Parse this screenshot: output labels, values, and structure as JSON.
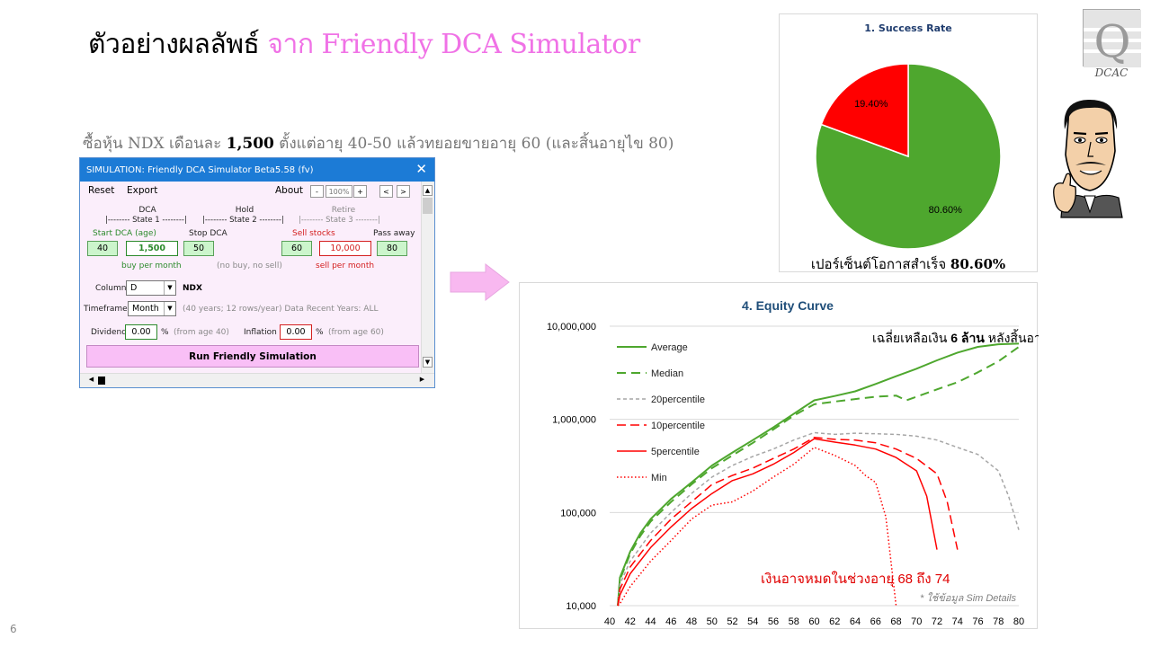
{
  "slide": {
    "title_main": "ตัวอย่างผลลัพธ์",
    "title_accent": "จาก Friendly DCA Simulator",
    "subtitle_pre": "ซื้อหุ้น NDX เดือนละ",
    "subtitle_amount": "1,500",
    "subtitle_post": "ตั้งแต่อายุ 40-50 แล้วทยอยขายอายุ 60 (และสิ้นอายุไข 80)",
    "page_number": "6",
    "logo_letter": "Q",
    "logo_text": "DCAC"
  },
  "simulator": {
    "window_title": "SIMULATION: Friendly DCA Simulator Beta5.58 (fv)",
    "menu": {
      "reset": "Reset",
      "export": "Export",
      "about": "About",
      "zoom_minus": "-",
      "zoom_value": "100%",
      "zoom_plus": "+",
      "prev": "<",
      "next": ">"
    },
    "states": [
      {
        "name": "DCA",
        "label": "|-------- State 1 --------|"
      },
      {
        "name": "Hold",
        "label": "|-------- State 2 --------|"
      },
      {
        "name": "Retire",
        "label": "|-------- State 3 --------|"
      }
    ],
    "fields": {
      "start_label": "Start DCA (age)",
      "stop_label": "Stop DCA",
      "sell_label": "Sell stocks",
      "pass_label": "Pass away",
      "start_age": "40",
      "buy_amount": "1,500",
      "stop_age": "50",
      "sell_age": "60",
      "sell_amount": "10,000",
      "pass_age": "80",
      "buy_note": "buy per month",
      "hold_note": "(no buy, no sell)",
      "sell_note": "sell per month"
    },
    "column": {
      "label": "Column",
      "value": "D",
      "ticker": "NDX"
    },
    "timeframe": {
      "label": "Timeframe",
      "value": "Month",
      "note": "(40 years; 12 rows/year) Data Recent Years: ALL"
    },
    "dividend": {
      "label": "Dividend",
      "value": "0.00",
      "unit": "%",
      "note": "(from age 40)"
    },
    "inflation": {
      "label": "Inflation",
      "value": "0.00",
      "unit": "%",
      "note": "(from age 60)"
    },
    "run_button": "Run Friendly Simulation"
  },
  "pie": {
    "title": "1. Success Rate",
    "caption_text": "เปอร์เซ็นต์โอกาสสำเร็จ",
    "caption_value": "80.60%"
  },
  "equity": {
    "title": "4. Equity Curve",
    "annotation_pre": "เฉลี่ยเหลือเงิน",
    "annotation_bold": "6 ล้าน",
    "annotation_post": "หลังสิ้นอายุไข",
    "runout_note": "เงินอาจหมดในช่วงอายุ 68 ถึง 74",
    "source_note": "* ใช้ข้อมูล Sim Details"
  },
  "chart_data": [
    {
      "type": "pie",
      "title": "1. Success Rate",
      "slices": [
        {
          "value": 80.6,
          "label": "80.60%",
          "color": "#4ea72e"
        },
        {
          "value": 19.4,
          "label": "19.40%",
          "color": "#ff0000"
        }
      ]
    },
    {
      "type": "line",
      "title": "4. Equity Curve",
      "x_scale": "linear",
      "y_scale": "log",
      "xlim": [
        40,
        80
      ],
      "ylim": [
        10000,
        10000000
      ],
      "x_ticks": [
        40,
        42,
        44,
        46,
        48,
        50,
        52,
        54,
        56,
        58,
        60,
        62,
        64,
        66,
        68,
        70,
        72,
        74,
        76,
        78,
        80
      ],
      "y_ticks": [
        10000,
        100000,
        1000000,
        10000000
      ],
      "y_tick_labels": [
        "10,000",
        "100,000",
        "1,000,000",
        "10,000,000"
      ],
      "grid": "horizontal",
      "legend_position": "top-left",
      "series": [
        {
          "name": "Average",
          "color": "#4ea72e",
          "dash": "solid",
          "width": 2,
          "points": [
            [
              40.8,
              10000
            ],
            [
              41,
              20000
            ],
            [
              42,
              38000
            ],
            [
              43,
              60000
            ],
            [
              44,
              85000
            ],
            [
              46,
              140000
            ],
            [
              48,
              210000
            ],
            [
              50,
              320000
            ],
            [
              52,
              440000
            ],
            [
              54,
              600000
            ],
            [
              56,
              820000
            ],
            [
              58,
              1150000
            ],
            [
              60,
              1600000
            ],
            [
              62,
              1780000
            ],
            [
              64,
              2000000
            ],
            [
              66,
              2400000
            ],
            [
              68,
              2900000
            ],
            [
              70,
              3500000
            ],
            [
              72,
              4300000
            ],
            [
              74,
              5200000
            ],
            [
              76,
              6000000
            ],
            [
              78,
              6400000
            ],
            [
              80,
              6500000
            ]
          ]
        },
        {
          "name": "Median",
          "color": "#4ea72e",
          "dash": "10 6",
          "width": 2,
          "points": [
            [
              40.8,
              10000
            ],
            [
              41,
              19000
            ],
            [
              42,
              36000
            ],
            [
              43,
              56000
            ],
            [
              44,
              80000
            ],
            [
              46,
              130000
            ],
            [
              48,
              200000
            ],
            [
              50,
              300000
            ],
            [
              52,
              410000
            ],
            [
              54,
              560000
            ],
            [
              56,
              780000
            ],
            [
              58,
              1100000
            ],
            [
              60,
              1450000
            ],
            [
              62,
              1550000
            ],
            [
              64,
              1650000
            ],
            [
              66,
              1750000
            ],
            [
              68,
              1800000
            ],
            [
              69,
              1600000
            ],
            [
              70,
              1750000
            ],
            [
              72,
              2100000
            ],
            [
              74,
              2500000
            ],
            [
              76,
              3200000
            ],
            [
              78,
              4200000
            ],
            [
              80,
              6000000
            ]
          ]
        },
        {
          "name": "20percentile",
          "color": "#a6a6a6",
          "dash": "4 3",
          "width": 1.5,
          "points": [
            [
              40.8,
              10000
            ],
            [
              41,
              17000
            ],
            [
              42,
              30000
            ],
            [
              44,
              60000
            ],
            [
              46,
              100000
            ],
            [
              48,
              160000
            ],
            [
              50,
              240000
            ],
            [
              52,
              320000
            ],
            [
              54,
              400000
            ],
            [
              56,
              480000
            ],
            [
              58,
              600000
            ],
            [
              60,
              720000
            ],
            [
              62,
              690000
            ],
            [
              64,
              710000
            ],
            [
              66,
              700000
            ],
            [
              68,
              690000
            ],
            [
              70,
              660000
            ],
            [
              72,
              600000
            ],
            [
              74,
              500000
            ],
            [
              76,
              420000
            ],
            [
              78,
              280000
            ],
            [
              79,
              150000
            ],
            [
              80,
              65000
            ]
          ]
        },
        {
          "name": "10percentile",
          "color": "#ff0000",
          "dash": "10 5",
          "width": 1.5,
          "points": [
            [
              40.8,
              10000
            ],
            [
              41,
              15000
            ],
            [
              42,
              26000
            ],
            [
              44,
              50000
            ],
            [
              46,
              85000
            ],
            [
              48,
              130000
            ],
            [
              50,
              200000
            ],
            [
              52,
              250000
            ],
            [
              54,
              300000
            ],
            [
              56,
              380000
            ],
            [
              58,
              480000
            ],
            [
              60,
              640000
            ],
            [
              62,
              610000
            ],
            [
              64,
              600000
            ],
            [
              66,
              560000
            ],
            [
              68,
              480000
            ],
            [
              70,
              380000
            ],
            [
              72,
              260000
            ],
            [
              73,
              130000
            ],
            [
              74,
              40000
            ]
          ]
        },
        {
          "name": "5percentile",
          "color": "#ff0000",
          "dash": "solid",
          "width": 1.5,
          "points": [
            [
              40.8,
              10000
            ],
            [
              41,
              13000
            ],
            [
              42,
              22000
            ],
            [
              44,
              42000
            ],
            [
              46,
              70000
            ],
            [
              48,
              110000
            ],
            [
              50,
              160000
            ],
            [
              52,
              220000
            ],
            [
              54,
              260000
            ],
            [
              56,
              330000
            ],
            [
              58,
              440000
            ],
            [
              60,
              620000
            ],
            [
              62,
              570000
            ],
            [
              64,
              530000
            ],
            [
              66,
              480000
            ],
            [
              68,
              390000
            ],
            [
              70,
              280000
            ],
            [
              71,
              150000
            ],
            [
              72,
              40000
            ]
          ]
        },
        {
          "name": "Min",
          "color": "#ff0000",
          "dash": "1.5 2.5",
          "width": 1.5,
          "points": [
            [
              40.8,
              10000
            ],
            [
              41,
              10500
            ],
            [
              42,
              16000
            ],
            [
              44,
              30000
            ],
            [
              46,
              50000
            ],
            [
              48,
              85000
            ],
            [
              50,
              120000
            ],
            [
              52,
              130000
            ],
            [
              54,
              170000
            ],
            [
              56,
              240000
            ],
            [
              58,
              330000
            ],
            [
              60,
              500000
            ],
            [
              62,
              410000
            ],
            [
              64,
              320000
            ],
            [
              65,
              250000
            ],
            [
              66,
              210000
            ],
            [
              67,
              90000
            ],
            [
              68,
              10000
            ]
          ]
        }
      ]
    }
  ]
}
